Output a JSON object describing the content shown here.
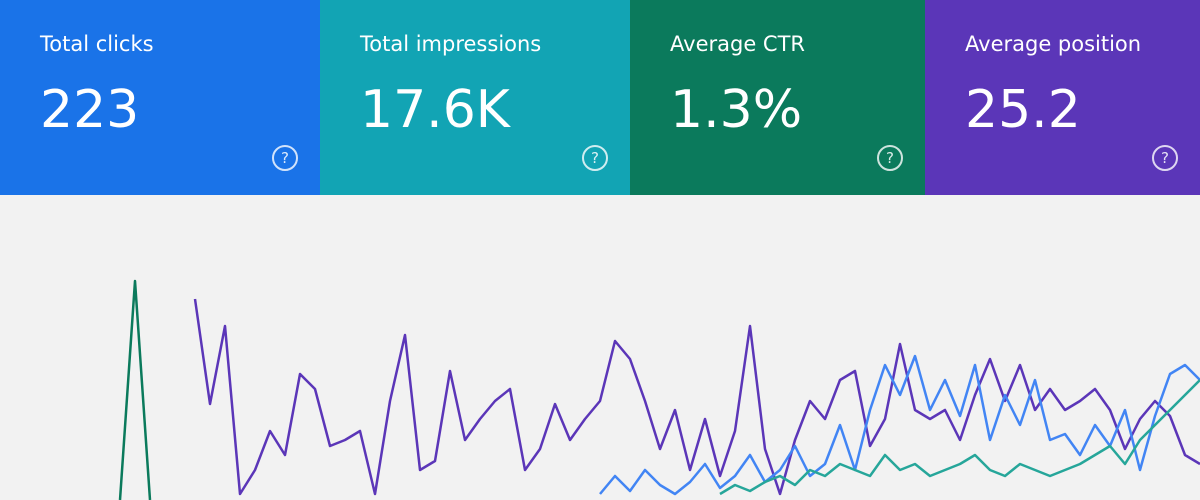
{
  "cards": [
    {
      "label": "Total clicks",
      "value": "223",
      "color": "#1a73e8"
    },
    {
      "label": "Total impressions",
      "value": "17.6K",
      "color": "#12a4b4"
    },
    {
      "label": "Average CTR",
      "value": "1.3%",
      "color": "#0b7a5c"
    },
    {
      "label": "Average position",
      "value": "25.2",
      "color": "#5b36b8"
    }
  ],
  "chart": {
    "type": "line",
    "series": [
      {
        "color": "#0b7a5c",
        "values": [
          0,
          73,
          0
        ]
      },
      {
        "color": "#5b36b8",
        "values": [
          null,
          null,
          null,
          null,
          null,
          67,
          32,
          58,
          2,
          10,
          23,
          15,
          42,
          37,
          18,
          20,
          23,
          2,
          33,
          55,
          10,
          13,
          43,
          20,
          27,
          33,
          37,
          10,
          17,
          32,
          20,
          27,
          33,
          53,
          47,
          33,
          17,
          30,
          10,
          27,
          8,
          23,
          58,
          17,
          2,
          20,
          33,
          27,
          40,
          43,
          18,
          27,
          52,
          30,
          27,
          30,
          20,
          35,
          47,
          33,
          45,
          30,
          37,
          30,
          33,
          37,
          30,
          17,
          27,
          33,
          28,
          15,
          12
        ]
      },
      {
        "color": "#4285f4",
        "values": [
          null,
          null,
          null,
          null,
          null,
          null,
          null,
          null,
          null,
          null,
          null,
          null,
          null,
          null,
          null,
          null,
          null,
          null,
          null,
          null,
          null,
          null,
          null,
          null,
          null,
          null,
          null,
          null,
          null,
          null,
          null,
          null,
          2,
          8,
          3,
          10,
          5,
          2,
          6,
          12,
          4,
          8,
          15,
          6,
          10,
          18,
          8,
          12,
          25,
          10,
          30,
          45,
          35,
          48,
          30,
          40,
          28,
          45,
          20,
          35,
          25,
          40,
          20,
          22,
          15,
          25,
          18,
          30,
          10,
          28,
          42,
          45,
          40
        ]
      },
      {
        "color": "#26a69a",
        "values": [
          null,
          null,
          null,
          null,
          null,
          null,
          null,
          null,
          null,
          null,
          null,
          null,
          null,
          null,
          null,
          null,
          null,
          null,
          null,
          null,
          null,
          null,
          null,
          null,
          null,
          null,
          null,
          null,
          null,
          null,
          null,
          null,
          null,
          null,
          null,
          null,
          null,
          null,
          null,
          null,
          2,
          5,
          3,
          6,
          8,
          5,
          10,
          8,
          12,
          10,
          8,
          15,
          10,
          12,
          8,
          10,
          12,
          15,
          10,
          8,
          12,
          10,
          8,
          10,
          12,
          15,
          18,
          12,
          20,
          25,
          30,
          35,
          40
        ]
      }
    ]
  }
}
